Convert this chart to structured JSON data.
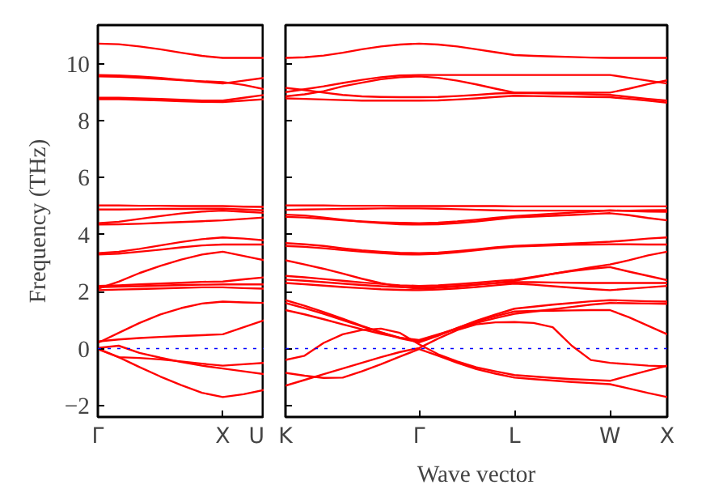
{
  "chart_data": [
    {
      "type": "line",
      "ylabel": "Frequency (THz)",
      "categories": [
        "Γ",
        null,
        null,
        null,
        null,
        null,
        "X",
        null,
        "U"
      ],
      "ylim": [
        -2.4,
        11.35
      ],
      "yticks": [
        {
          "value": -2,
          "label": "−2"
        },
        0,
        2,
        4,
        6,
        8,
        10
      ],
      "grid": false,
      "marker": "none",
      "line_style": "solid",
      "ref_lines": [
        {
          "axis": "y",
          "value": 0,
          "color": "#0000ff",
          "line_style": "dotted"
        }
      ],
      "series": [
        {
          "color": "#ff0000",
          "values": [
            10.7,
            10.68,
            10.6,
            10.5,
            10.38,
            10.27,
            10.2,
            10.2,
            10.2
          ]
        },
        {
          "color": "#ff0000",
          "values": [
            9.6,
            9.58,
            9.55,
            9.5,
            9.43,
            9.36,
            9.3,
            9.4,
            9.5
          ]
        },
        {
          "color": "#ff0000",
          "values": [
            9.55,
            9.54,
            9.5,
            9.46,
            9.42,
            9.38,
            9.35,
            9.25,
            9.1
          ]
        },
        {
          "color": "#ff0000",
          "values": [
            8.8,
            8.8,
            8.78,
            8.76,
            8.73,
            8.7,
            8.7,
            8.8,
            8.9
          ]
        },
        {
          "color": "#ff0000",
          "values": [
            8.75,
            8.75,
            8.73,
            8.71,
            8.68,
            8.66,
            8.65,
            8.7,
            8.75
          ]
        },
        {
          "color": "#ff0000",
          "values": [
            5.02,
            5.02,
            5.01,
            5.01,
            5.0,
            5.0,
            5.0,
            4.98,
            4.97
          ]
        },
        {
          "color": "#ff0000",
          "values": [
            4.88,
            4.88,
            4.89,
            4.9,
            4.9,
            4.91,
            4.91,
            4.88,
            4.85
          ]
        },
        {
          "color": "#ff0000",
          "values": [
            4.4,
            4.45,
            4.55,
            4.65,
            4.74,
            4.81,
            4.84,
            4.8,
            4.76
          ]
        },
        {
          "color": "#ff0000",
          "values": [
            4.35,
            4.36,
            4.38,
            4.41,
            4.44,
            4.47,
            4.5,
            4.55,
            4.6
          ]
        },
        {
          "color": "#ff0000",
          "values": [
            3.35,
            3.4,
            3.5,
            3.62,
            3.74,
            3.84,
            3.9,
            3.86,
            3.8
          ]
        },
        {
          "color": "#ff0000",
          "values": [
            3.3,
            3.33,
            3.4,
            3.47,
            3.55,
            3.62,
            3.65,
            3.65,
            3.65
          ]
        },
        {
          "color": "#ff0000",
          "values": [
            2.1,
            2.35,
            2.65,
            2.9,
            3.12,
            3.3,
            3.4,
            3.25,
            3.1
          ]
        },
        {
          "color": "#ff0000",
          "values": [
            2.2,
            2.22,
            2.25,
            2.28,
            2.31,
            2.34,
            2.35,
            2.43,
            2.5
          ]
        },
        {
          "color": "#ff0000",
          "values": [
            2.15,
            2.17,
            2.19,
            2.21,
            2.23,
            2.24,
            2.25,
            2.25,
            2.25
          ]
        },
        {
          "color": "#ff0000",
          "values": [
            2.05,
            2.07,
            2.09,
            2.11,
            2.13,
            2.15,
            2.15,
            2.12,
            2.1
          ]
        },
        {
          "color": "#ff0000",
          "values": [
            0.2,
            0.55,
            0.9,
            1.2,
            1.42,
            1.58,
            1.65,
            1.62,
            1.6
          ]
        },
        {
          "color": "#ff0000",
          "values": [
            0.25,
            0.32,
            0.37,
            0.41,
            0.44,
            0.47,
            0.5,
            0.75,
            1.0
          ]
        },
        {
          "color": "#ff0000",
          "values": [
            0.02,
            0.1,
            -0.15,
            -0.32,
            -0.47,
            -0.6,
            -0.7,
            -0.8,
            -0.9
          ]
        },
        {
          "color": "#ff0000",
          "values": [
            -0.02,
            -0.3,
            -0.33,
            -0.38,
            -0.45,
            -0.53,
            -0.6,
            -0.55,
            -0.5
          ]
        },
        {
          "color": "#ff0000",
          "values": [
            0.0,
            -0.3,
            -0.65,
            -0.98,
            -1.28,
            -1.55,
            -1.7,
            -1.6,
            -1.45
          ]
        }
      ]
    },
    {
      "type": "line",
      "xlabel": "Wave vector",
      "tick_labels": "x",
      "categories": [
        "K",
        null,
        null,
        null,
        null,
        null,
        null,
        "Γ",
        null,
        null,
        null,
        null,
        "L",
        null,
        null,
        null,
        null,
        "W",
        null,
        null,
        "X"
      ],
      "ylim": [
        -2.4,
        11.35
      ],
      "yticks": [
        -2,
        0,
        2,
        4,
        6,
        8,
        10
      ],
      "grid": false,
      "marker": "none",
      "line_style": "solid",
      "ref_lines": [
        {
          "axis": "y",
          "value": 0,
          "color": "#0000ff",
          "line_style": "dotted"
        }
      ],
      "series": [
        {
          "color": "#ff0000",
          "values": [
            10.2,
            10.22,
            10.28,
            10.38,
            10.5,
            10.6,
            10.67,
            10.7,
            10.67,
            10.6,
            10.5,
            10.4,
            10.3,
            10.27,
            10.25,
            10.23,
            10.21,
            10.2,
            10.2,
            10.2,
            10.2
          ]
        },
        {
          "color": "#ff0000",
          "values": [
            9.0,
            9.1,
            9.2,
            9.32,
            9.43,
            9.52,
            9.58,
            9.6,
            9.6,
            9.6,
            9.6,
            9.6,
            9.6,
            9.6,
            9.6,
            9.6,
            9.6,
            9.6,
            9.5,
            9.4,
            9.3
          ]
        },
        {
          "color": "#ff0000",
          "values": [
            8.85,
            8.92,
            9.03,
            9.2,
            9.33,
            9.45,
            9.52,
            9.55,
            9.5,
            9.4,
            9.27,
            9.12,
            8.98,
            8.98,
            8.98,
            8.98,
            8.98,
            8.98,
            9.12,
            9.28,
            9.41
          ]
        },
        {
          "color": "#ff0000",
          "values": [
            9.15,
            9.07,
            8.98,
            8.9,
            8.85,
            8.83,
            8.82,
            8.82,
            8.83,
            8.86,
            8.9,
            8.95,
            8.97,
            8.96,
            8.95,
            8.94,
            8.92,
            8.9,
            8.83,
            8.76,
            8.7
          ]
        },
        {
          "color": "#ff0000",
          "values": [
            8.78,
            8.76,
            8.74,
            8.72,
            8.7,
            8.7,
            8.7,
            8.7,
            8.71,
            8.74,
            8.78,
            8.83,
            8.87,
            8.86,
            8.85,
            8.84,
            8.83,
            8.82,
            8.76,
            8.7,
            8.63
          ]
        },
        {
          "color": "#ff0000",
          "values": [
            5.02,
            5.02,
            5.02,
            5.01,
            5.01,
            5.01,
            5.0,
            5.0,
            5.0,
            5.0,
            5.0,
            5.0,
            4.99,
            4.99,
            4.99,
            4.99,
            4.99,
            4.99,
            4.99,
            4.99,
            4.99
          ]
        },
        {
          "color": "#ff0000",
          "values": [
            4.87,
            4.88,
            4.89,
            4.9,
            4.91,
            4.92,
            4.92,
            4.92,
            4.91,
            4.89,
            4.87,
            4.85,
            4.84,
            4.84,
            4.84,
            4.84,
            4.84,
            4.84,
            4.84,
            4.85,
            4.86
          ]
        },
        {
          "color": "#ff0000",
          "values": [
            4.7,
            4.67,
            4.6,
            4.52,
            4.45,
            4.4,
            4.36,
            4.35,
            4.36,
            4.4,
            4.46,
            4.53,
            4.6,
            4.63,
            4.66,
            4.69,
            4.72,
            4.75,
            4.68,
            4.58,
            4.5
          ]
        },
        {
          "color": "#ff0000",
          "values": [
            4.62,
            4.6,
            4.55,
            4.5,
            4.46,
            4.43,
            4.41,
            4.4,
            4.42,
            4.46,
            4.52,
            4.59,
            4.65,
            4.69,
            4.73,
            4.77,
            4.81,
            4.85,
            4.83,
            4.81,
            4.8
          ]
        },
        {
          "color": "#ff0000",
          "values": [
            3.7,
            3.66,
            3.6,
            3.52,
            3.45,
            3.4,
            3.36,
            3.35,
            3.37,
            3.42,
            3.48,
            3.55,
            3.6,
            3.63,
            3.66,
            3.69,
            3.72,
            3.75,
            3.8,
            3.86,
            3.9
          ]
        },
        {
          "color": "#ff0000",
          "values": [
            3.6,
            3.57,
            3.52,
            3.46,
            3.4,
            3.35,
            3.31,
            3.3,
            3.32,
            3.38,
            3.45,
            3.52,
            3.58,
            3.6,
            3.62,
            3.64,
            3.65,
            3.66,
            3.66,
            3.65,
            3.65
          ]
        },
        {
          "color": "#ff0000",
          "values": [
            3.1,
            2.95,
            2.8,
            2.63,
            2.45,
            2.3,
            2.17,
            2.1,
            2.13,
            2.18,
            2.24,
            2.3,
            2.38,
            2.5,
            2.62,
            2.74,
            2.85,
            2.95,
            3.1,
            3.27,
            3.4
          ]
        },
        {
          "color": "#ff0000",
          "values": [
            2.55,
            2.5,
            2.44,
            2.38,
            2.32,
            2.27,
            2.22,
            2.2,
            2.22,
            2.26,
            2.31,
            2.37,
            2.42,
            2.52,
            2.62,
            2.72,
            2.8,
            2.86,
            2.7,
            2.55,
            2.4
          ]
        },
        {
          "color": "#ff0000",
          "values": [
            2.42,
            2.38,
            2.33,
            2.28,
            2.23,
            2.19,
            2.16,
            2.15,
            2.17,
            2.2,
            2.24,
            2.29,
            2.33,
            2.33,
            2.32,
            2.31,
            2.3,
            2.3,
            2.3,
            2.3,
            2.3
          ]
        },
        {
          "color": "#ff0000",
          "values": [
            2.3,
            2.26,
            2.21,
            2.16,
            2.12,
            2.08,
            2.06,
            2.05,
            2.07,
            2.11,
            2.16,
            2.22,
            2.28,
            2.24,
            2.19,
            2.14,
            2.09,
            2.05,
            2.1,
            2.15,
            2.2
          ]
        },
        {
          "color": "#ff0000",
          "values": [
            1.7,
            1.5,
            1.28,
            1.05,
            0.8,
            0.57,
            0.36,
            0.22,
            0.45,
            0.72,
            0.98,
            1.2,
            1.4,
            1.47,
            1.54,
            1.6,
            1.66,
            1.7,
            1.68,
            1.66,
            1.65
          ]
        },
        {
          "color": "#ff0000",
          "values": [
            1.6,
            1.42,
            1.22,
            1.0,
            0.78,
            0.57,
            0.38,
            0.27,
            0.48,
            0.72,
            0.95,
            1.14,
            1.3,
            1.32,
            1.33,
            1.34,
            1.35,
            1.35,
            1.1,
            0.8,
            0.5
          ]
        },
        {
          "color": "#ff0000",
          "values": [
            1.35,
            1.2,
            1.03,
            0.85,
            0.68,
            0.52,
            0.38,
            0.3,
            0.5,
            0.7,
            0.9,
            1.07,
            1.22,
            1.3,
            1.38,
            1.46,
            1.54,
            1.6,
            1.59,
            1.58,
            1.57
          ]
        },
        {
          "color": "#ff0000",
          "values": [
            -1.3,
            -1.1,
            -0.9,
            -0.7,
            -0.5,
            -0.3,
            -0.12,
            0.02,
            0.35,
            0.65,
            0.85,
            0.92,
            0.93,
            0.9,
            0.75,
            0.1,
            -0.4,
            -0.5,
            -0.55,
            -0.6,
            -0.62
          ]
        },
        {
          "color": "#ff0000",
          "values": [
            -0.85,
            -0.95,
            -1.03,
            -1.02,
            -0.8,
            -0.55,
            -0.28,
            -0.02,
            -0.25,
            -0.5,
            -0.72,
            -0.88,
            -1.02,
            -1.07,
            -1.12,
            -1.17,
            -1.21,
            -1.25,
            -1.4,
            -1.56,
            -1.7
          ]
        },
        {
          "color": "#ff0000",
          "values": [
            -0.4,
            -0.25,
            0.2,
            0.5,
            0.65,
            0.7,
            0.55,
            0.15,
            -0.2,
            -0.45,
            -0.66,
            -0.8,
            -0.93,
            -0.98,
            -1.03,
            -1.07,
            -1.1,
            -1.13,
            -0.95,
            -0.77,
            -0.6
          ]
        }
      ]
    }
  ]
}
